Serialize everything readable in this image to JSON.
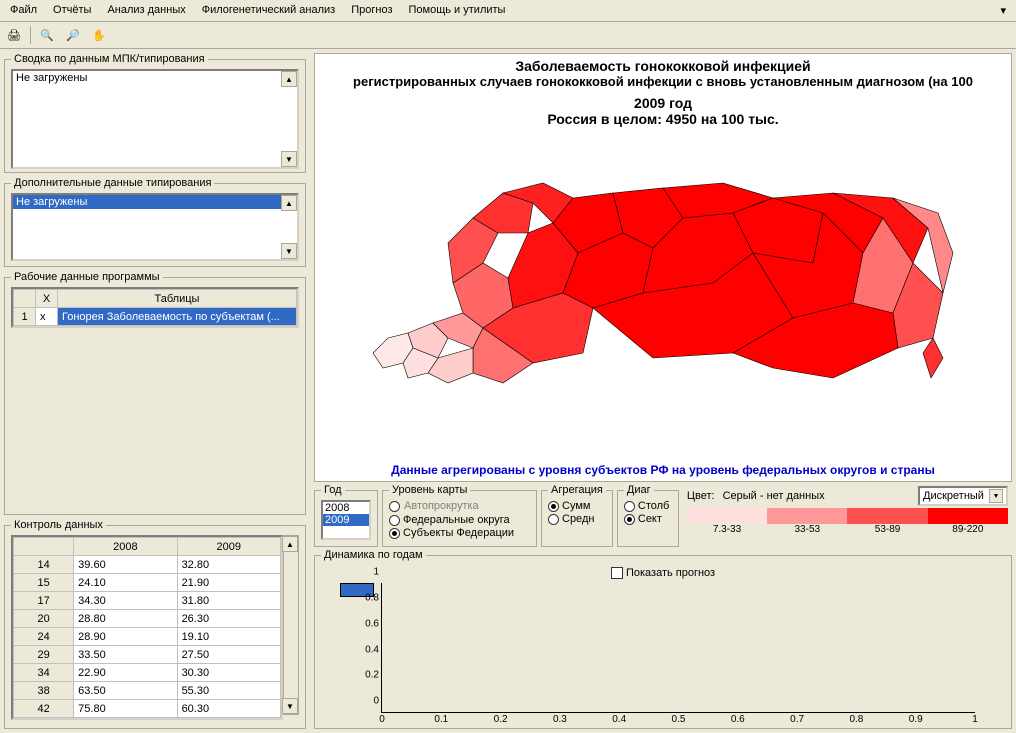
{
  "menu": {
    "items": [
      "Файл",
      "Отчёты",
      "Анализ данных",
      "Филогенетический анализ",
      "Прогноз",
      "Помощь и утилиты"
    ]
  },
  "panels": {
    "mpk": {
      "title": "Сводка по данным МПК/типирования",
      "item": "Не загружены"
    },
    "typing": {
      "title": "Дополнительные данные типирования",
      "item": "Не загружены"
    },
    "work": {
      "title": "Рабочие данные программы",
      "col_x": "X",
      "col_tables": "Таблицы",
      "row_num": "1",
      "row_x": "x",
      "row_name": "Гонорея Заболеваемость по субъектам (..."
    },
    "datactrl": {
      "title": "Контроль данных",
      "cols": [
        "",
        "2008",
        "2009"
      ],
      "rows": [
        [
          "14",
          "39.60",
          "32.80"
        ],
        [
          "15",
          "24.10",
          "21.90"
        ],
        [
          "17",
          "34.30",
          "31.80"
        ],
        [
          "20",
          "28.80",
          "26.30"
        ],
        [
          "24",
          "28.90",
          "19.10"
        ],
        [
          "29",
          "33.50",
          "27.50"
        ],
        [
          "34",
          "22.90",
          "30.30"
        ],
        [
          "38",
          "63.50",
          "55.30"
        ],
        [
          "42",
          "75.80",
          "60.30"
        ]
      ]
    }
  },
  "map": {
    "title1": "Заболеваемость гонококковой инфекцией",
    "title2": "регистрированных случаев гонококковой инфекции с вновь установленным диагнозом (на 100",
    "year": "2009 год",
    "total": "Россия в целом: 4950 на 100 тыс.",
    "footer": "Данные агрегированы с уровня субъектов РФ на уровень федеральных округов и страны",
    "colors": [
      "#ffe0e0",
      "#ff9999",
      "#ff5050",
      "#ff0000"
    ]
  },
  "controls": {
    "year_label": "Год",
    "years": [
      "2008",
      "2009"
    ],
    "autoscroll": "Автопрокрутка",
    "maplevel_label": "Уровень карты",
    "maplevel": [
      "Федеральные округа",
      "Субъекты Федерации"
    ],
    "agg_label": "Агрегация",
    "agg": [
      "Сумм",
      "Средн"
    ],
    "diag_label": "Диаг",
    "diag": [
      "Столб",
      "Сект"
    ],
    "color_label": "Цвет:",
    "color_note": "Серый - нет данных",
    "color_mode": "Дискретный",
    "scale_labels": [
      "7.3-33",
      "33-53",
      "53-89",
      "89-220"
    ]
  },
  "dynamics": {
    "title": "Динамика по годам",
    "show_forecast": "Показать прогноз",
    "yticks": [
      "0",
      "0.2",
      "0.4",
      "0.6",
      "0.8",
      "1"
    ],
    "xticks": [
      "0",
      "0.1",
      "0.2",
      "0.3",
      "0.4",
      "0.5",
      "0.6",
      "0.7",
      "0.8",
      "0.9",
      "1"
    ]
  }
}
